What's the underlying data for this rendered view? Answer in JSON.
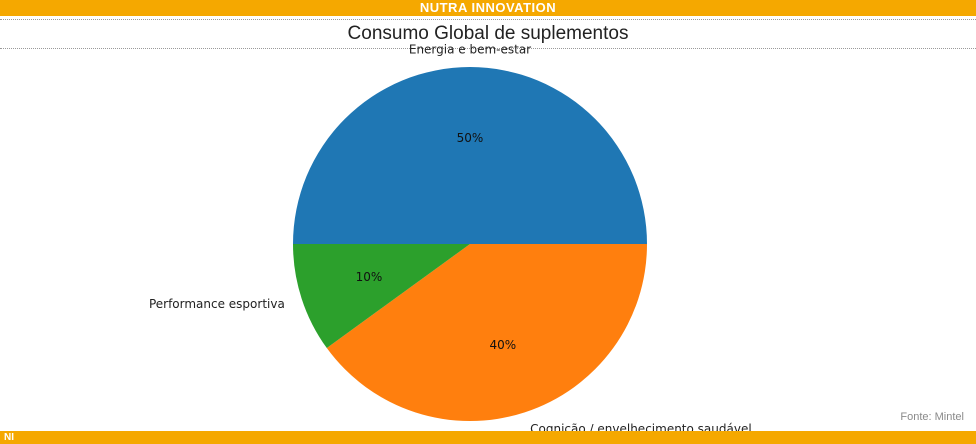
{
  "header": {
    "brand": "NUTRA INNOVATION"
  },
  "footer": {
    "logo": "NI",
    "source": "Fonte: Mintel"
  },
  "colors": {
    "banner": "#f5a800"
  },
  "chart_data": {
    "type": "pie",
    "title": "Consumo Global de suplementos",
    "labels": [
      "Energia e bem-estar",
      "Cognição / envelhecimento saudável",
      "Performance esportiva"
    ],
    "values": [
      50,
      40,
      10
    ],
    "percent_labels": [
      "50%",
      "40%",
      "10%"
    ],
    "colors": [
      "#1f77b4",
      "#ff7f0e",
      "#2ca02c"
    ]
  }
}
